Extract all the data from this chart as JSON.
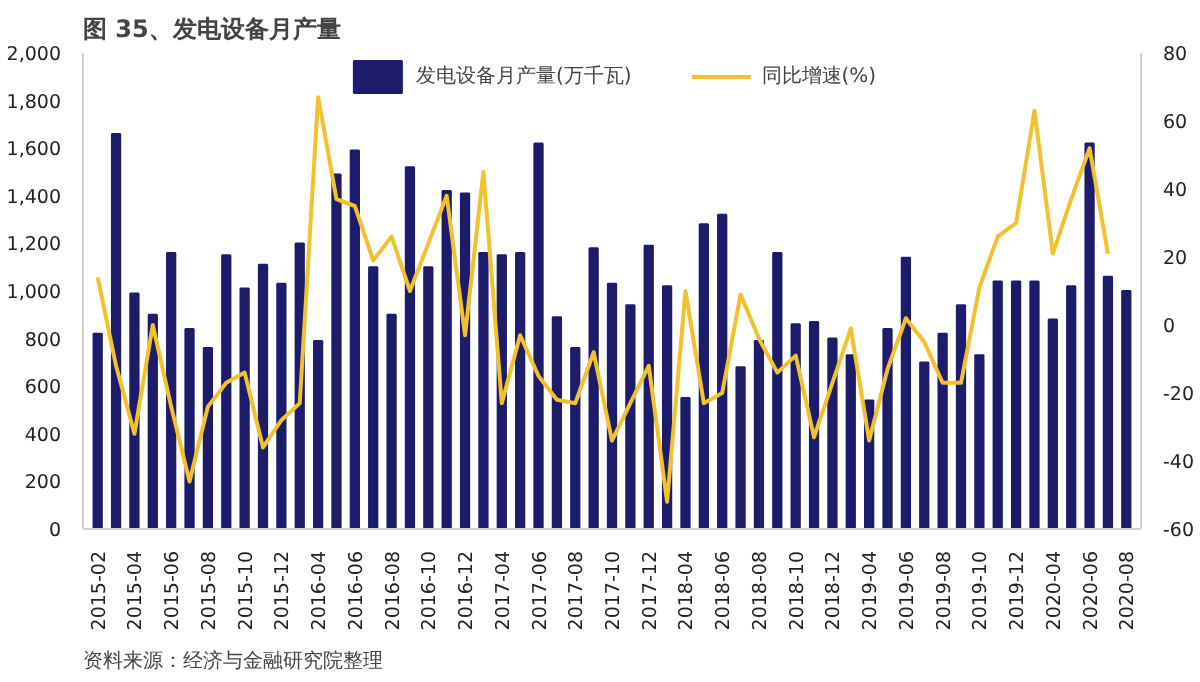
{
  "chart_data": {
    "type": "bar",
    "title": "图 35、发电设备月产量",
    "annotations": [
      "资料来源：经济与金融研究院整理"
    ],
    "categories": [
      "2015-02",
      null,
      "2015-04",
      null,
      "2015-06",
      null,
      "2015-08",
      null,
      "2015-10",
      null,
      "2015-12",
      null,
      "2016-04",
      null,
      "2016-06",
      null,
      "2016-08",
      null,
      "2016-10",
      null,
      "2016-12",
      null,
      "2017-04",
      null,
      "2017-06",
      null,
      "2017-08",
      null,
      "2017-10",
      null,
      "2017-12",
      null,
      "2018-04",
      null,
      "2018-06",
      null,
      "2018-08",
      null,
      "2018-10",
      null,
      "2018-12",
      null,
      "2019-04",
      null,
      "2019-06",
      null,
      "2019-08",
      null,
      "2019-10",
      null,
      "2019-12",
      null,
      "2020-04",
      null,
      "2020-06",
      null,
      "2020-08"
    ],
    "series": [
      {
        "name": "发电设备月产量(万千瓦)",
        "color": "#1c1c6b",
        "values": [
          820,
          1660,
          990,
          900,
          1160,
          840,
          760,
          1150,
          1010,
          1110,
          1030,
          1200,
          790,
          1490,
          1590,
          1100,
          900,
          1520,
          1100,
          1420,
          1410,
          1160,
          1150,
          1160,
          1620,
          890,
          760,
          1180,
          1030,
          940,
          1190,
          1020,
          550,
          1280,
          1320,
          680,
          790,
          1160,
          860,
          870,
          800,
          730,
          540,
          840,
          1140,
          700,
          820,
          940,
          730,
          1040,
          1040,
          1040,
          880,
          1020,
          1620,
          1060,
          1000
        ]
      },
      {
        "name": "同比增速(%)",
        "type": "line",
        "axis": "y2",
        "color": "#f2c12e",
        "values": [
          14,
          -12,
          -32,
          0,
          -24,
          -46,
          -24,
          -17,
          -14,
          -36,
          -28,
          -23,
          67,
          37,
          35,
          19,
          26,
          10,
          24,
          38,
          -3,
          45,
          -23,
          -3,
          -15,
          -22,
          -23,
          -8,
          -34,
          -23,
          -12,
          -52,
          10,
          -23,
          -20,
          9,
          -4,
          -14,
          -9,
          -33,
          -17,
          -1,
          -34,
          -13,
          2,
          -5,
          -17,
          -17,
          11,
          26,
          30,
          63,
          21,
          37,
          52,
          21,
          null
        ]
      }
    ],
    "ylim": [
      0,
      2000
    ],
    "yticks": [
      0,
      200,
      400,
      600,
      800,
      {
        "value": 1000,
        "label": "1,000"
      },
      {
        "value": 1200,
        "label": "1,200"
      },
      {
        "value": 1400,
        "label": "1,400"
      },
      {
        "value": 1600,
        "label": "1,600"
      },
      {
        "value": 1800,
        "label": "1,800"
      },
      {
        "value": 2000,
        "label": "2,000"
      }
    ],
    "y2lim": [
      -60,
      80
    ],
    "y2ticks": [
      -60,
      -40,
      -20,
      0,
      20,
      40,
      60,
      80
    ],
    "legend": "top",
    "grid": false,
    "line_style": "solid",
    "marker": "none"
  }
}
